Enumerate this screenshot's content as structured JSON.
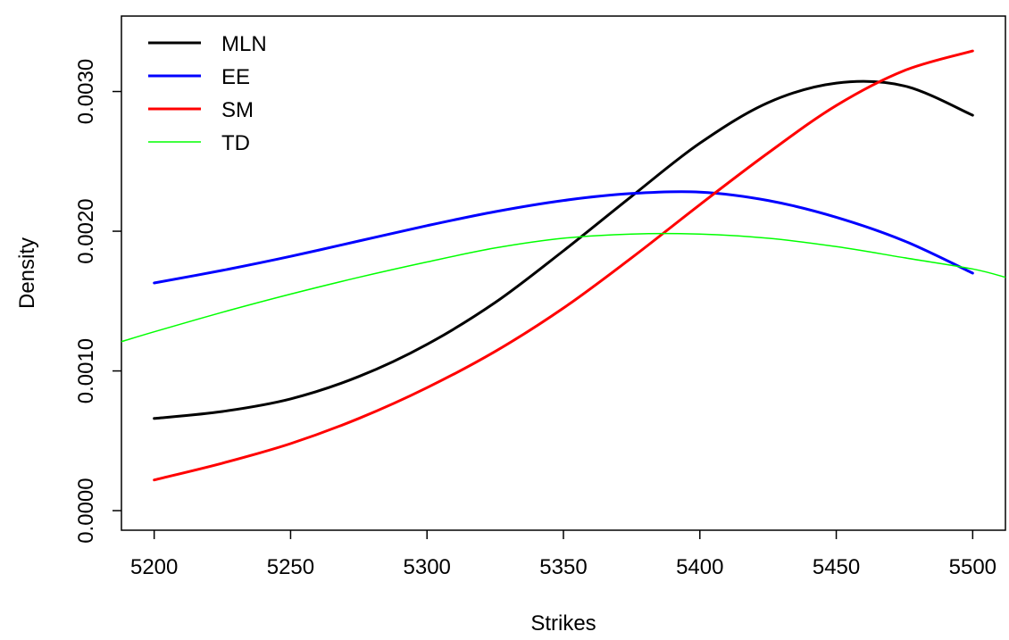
{
  "chart_data": {
    "type": "line",
    "title": "",
    "xlabel": "Strikes",
    "ylabel": "Density",
    "xlim": [
      5188,
      5512
    ],
    "ylim": [
      -0.00014,
      0.00354
    ],
    "xticks": [
      5200,
      5250,
      5300,
      5350,
      5400,
      5450,
      5500
    ],
    "yticks": [
      0.0,
      0.001,
      0.002,
      0.003
    ],
    "xtick_labels": [
      "5200",
      "5250",
      "5300",
      "5350",
      "5400",
      "5450",
      "5500"
    ],
    "ytick_labels": [
      "0.0000",
      "0.0010",
      "0.0020",
      "0.0030"
    ],
    "grid": false,
    "legend_position": "top-left",
    "series": [
      {
        "name": "MLN",
        "color": "#000000",
        "x": [
          5200,
          5225,
          5250,
          5275,
          5300,
          5325,
          5350,
          5375,
          5400,
          5425,
          5450,
          5475,
          5500
        ],
        "y": [
          0.00066,
          0.00071,
          0.0008,
          0.00096,
          0.00119,
          0.00149,
          0.00186,
          0.00225,
          0.00263,
          0.00292,
          0.00306,
          0.00304,
          0.00283
        ]
      },
      {
        "name": "EE",
        "color": "#0000ff",
        "x": [
          5200,
          5225,
          5250,
          5275,
          5300,
          5325,
          5350,
          5375,
          5400,
          5425,
          5450,
          5475,
          5500
        ],
        "y": [
          0.00163,
          0.00172,
          0.00182,
          0.00193,
          0.00204,
          0.00214,
          0.00222,
          0.00227,
          0.00228,
          0.00222,
          0.0021,
          0.00193,
          0.0017
        ]
      },
      {
        "name": "SM",
        "color": "#ff0000",
        "x": [
          5200,
          5225,
          5250,
          5275,
          5300,
          5325,
          5350,
          5375,
          5400,
          5425,
          5450,
          5475,
          5500
        ],
        "y": [
          0.00022,
          0.00034,
          0.00048,
          0.00066,
          0.00088,
          0.00114,
          0.00145,
          0.00181,
          0.00219,
          0.00256,
          0.0029,
          0.00315,
          0.00329
        ]
      },
      {
        "name": "TD",
        "color": "#00ff00",
        "x": [
          5188,
          5200,
          5225,
          5250,
          5275,
          5300,
          5325,
          5350,
          5375,
          5400,
          5425,
          5450,
          5475,
          5500,
          5512
        ],
        "y": [
          0.00121,
          0.00128,
          0.00142,
          0.00155,
          0.00167,
          0.00178,
          0.00188,
          0.00195,
          0.00198,
          0.00198,
          0.00195,
          0.00189,
          0.00181,
          0.00173,
          0.00167
        ]
      }
    ]
  }
}
